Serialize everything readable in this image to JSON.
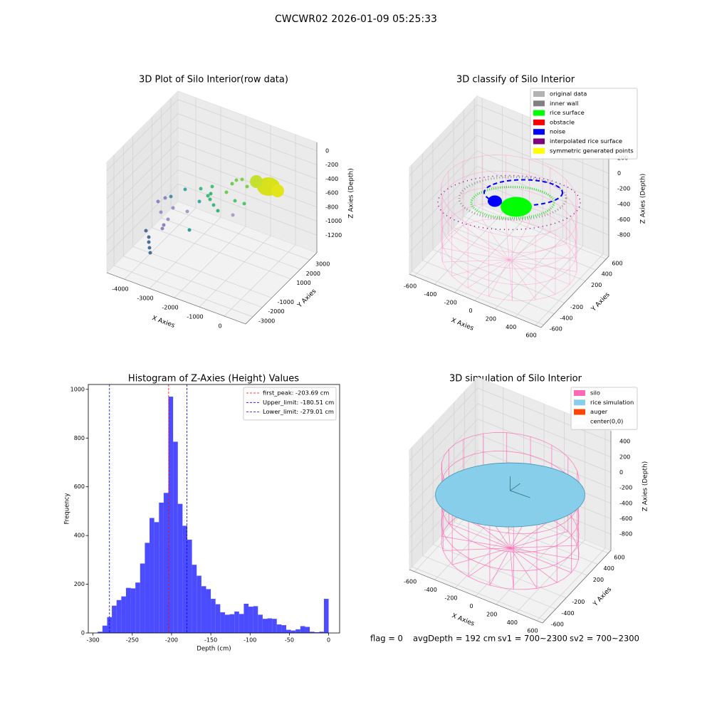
{
  "title": "CWCWR02 2026-01-09 05:25:33",
  "chart_data": [
    {
      "type": "scatter3d",
      "title": "3D Plot of Silo Interior(row data)",
      "xlabel": "X Axies",
      "ylabel": "Y Axies",
      "zlabel": "Z Axies (Depth)",
      "xlim": [
        -4714,
        857
      ],
      "ylim": [
        -3750,
        3750
      ],
      "zlim": [
        -1450,
        120
      ],
      "xticks": [
        -4000,
        -3000,
        -2000,
        -1000,
        0
      ],
      "yticks": [
        -3000,
        -2000,
        -1000,
        1000,
        2000,
        3000
      ],
      "zticks": [
        -1200,
        -1000,
        -800,
        -600,
        -400,
        -200,
        0
      ],
      "grid": true
    },
    {
      "type": "scatter3d",
      "title": "3D classify of Silo Interior",
      "xlabel": "X Axies",
      "ylabel": "Y Axies",
      "zlabel": "Z Axies (Depth)",
      "xlim": [
        -650,
        656
      ],
      "ylim": [
        -650,
        650
      ],
      "zlim": [
        -1078,
        311
      ],
      "xticks": [
        -600,
        -400,
        -200,
        0,
        200,
        400,
        600
      ],
      "yticks": [
        -600,
        -400,
        -200,
        200,
        400,
        600
      ],
      "zticks": [
        -800,
        -600,
        -400,
        -200,
        0,
        200
      ],
      "grid": true,
      "legend": "upper right",
      "series": [
        {
          "name": "original data",
          "color": "#b3b3b3"
        },
        {
          "name": "inner wall",
          "color": "#808080"
        },
        {
          "name": "rice surface",
          "color": "#00ff00"
        },
        {
          "name": "obstacle",
          "color": "#ff0000"
        },
        {
          "name": "noise",
          "color": "#0000ff"
        },
        {
          "name": "interpolated rice surface",
          "color": "#800080"
        },
        {
          "name": "symmetric generated points",
          "color": "#ffff00"
        }
      ]
    },
    {
      "type": "histogram",
      "title": "Histogram of Z-Axies (Height) Values",
      "xlabel": "Depth (cm)",
      "ylabel": "Frequency",
      "color": "#4b4bff",
      "bins": [
        -300,
        -294,
        -288,
        -282,
        -276,
        -270,
        -264,
        -258,
        -252,
        -246,
        -240,
        -234,
        -228,
        -222,
        -216,
        -210,
        -204,
        -198,
        -192,
        -186,
        -180,
        -174,
        -168,
        -162,
        -156,
        -150,
        -144,
        -138,
        -132,
        -126,
        -120,
        -114,
        -108,
        -102,
        -96,
        -90,
        -84,
        -78,
        -72,
        -66,
        -60,
        -54,
        -48,
        -42,
        -36,
        -30,
        -24,
        -18,
        -12,
        -6,
        0
      ],
      "values": [
        0,
        5,
        30,
        65,
        112,
        135,
        150,
        185,
        183,
        207,
        285,
        370,
        472,
        455,
        535,
        575,
        970,
        785,
        530,
        440,
        383,
        280,
        235,
        192,
        180,
        140,
        118,
        85,
        75,
        77,
        88,
        78,
        120,
        108,
        110,
        75,
        58,
        60,
        58,
        35,
        32,
        13,
        10,
        15,
        28,
        25,
        5,
        3,
        5,
        140
      ],
      "xlim": [
        -306,
        14
      ],
      "ylim": [
        0,
        1020
      ],
      "xticks": [
        -300,
        -250,
        -200,
        -150,
        -100,
        -50,
        0
      ],
      "yticks": [
        0,
        200,
        400,
        600,
        800,
        1000
      ],
      "legend": "upper right",
      "lines": [
        {
          "name": "first_peak: -203.69 cm",
          "value": -203.69,
          "color": "#ff0000"
        },
        {
          "name": "Upper_limit: -180.51 cm",
          "value": -180.51,
          "color": "#0000ff"
        },
        {
          "name": "Lower_limit: -279.01 cm",
          "value": -279.01,
          "color": "#0000ff"
        }
      ]
    },
    {
      "type": "scatter3d",
      "title": "3D simulation of Silo Interior",
      "xlabel": "X Axies",
      "ylabel": "Y Axies",
      "zlabel": "Z Axies (Depth)",
      "xlim": [
        -650,
        656
      ],
      "ylim": [
        -650,
        650
      ],
      "zlim": [
        -1010,
        540
      ],
      "xticks": [
        -600,
        -400,
        -200,
        0,
        200,
        400,
        600
      ],
      "yticks": [
        -600,
        -400,
        -200,
        200,
        400,
        600
      ],
      "zticks": [
        -800,
        -600,
        -400,
        -200,
        0,
        200,
        400
      ],
      "grid": true,
      "legend": "upper right",
      "series": [
        {
          "name": "silo",
          "color": "#ff69b4"
        },
        {
          "name": "rice simulation",
          "color": "#87ceeb"
        },
        {
          "name": "auger",
          "color": "#ff4500"
        },
        {
          "name": "center(0,0)",
          "color": "#ffffff"
        }
      ]
    }
  ],
  "annotations": [
    "flag = 0",
    "avgDepth = 192 cm",
    "sv1 = 700~2300",
    "sv2 = 700~2300"
  ]
}
